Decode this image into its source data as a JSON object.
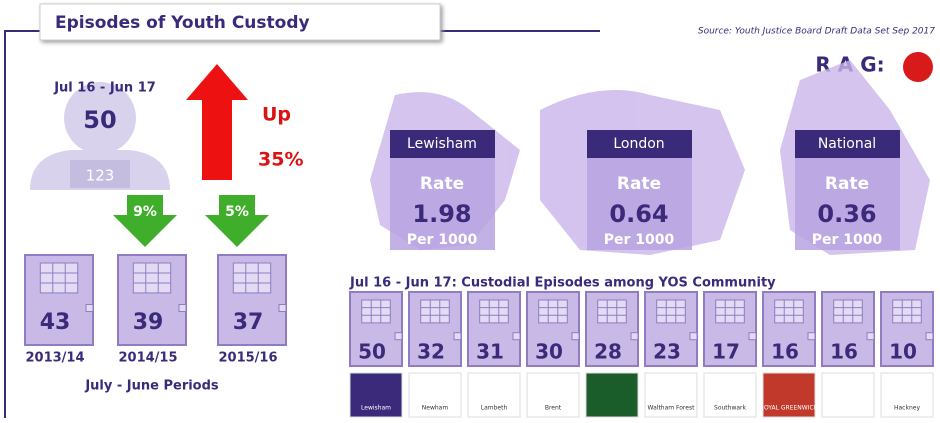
{
  "header": {
    "title": "Episodes of Youth Custody",
    "source": "Source: Youth Justice Board Draft Data Set Sep 2017",
    "rag": "R A G:"
  },
  "current": {
    "period": "Jul 16 - Jun 17",
    "value": "50",
    "badge": "123",
    "direction": "Up",
    "change": "35%"
  },
  "changes": [
    "9%",
    "5%"
  ],
  "history": {
    "values": [
      "43",
      "39",
      "37"
    ],
    "periods": [
      "2013/14",
      "2014/15",
      "2015/16"
    ],
    "caption": "July - June Periods"
  },
  "rates": [
    {
      "area": "Lewisham",
      "label": "Rate",
      "value": "1.98",
      "unit": "Per 1000"
    },
    {
      "area": "London",
      "label": "Rate",
      "value": "0.64",
      "unit": "Per 1000"
    },
    {
      "area": "National",
      "label": "Rate",
      "value": "0.36",
      "unit": "Per 1000"
    }
  ],
  "community": {
    "heading": "Jul 16 - Jun 17: Custodial Episodes among YOS Community",
    "values": [
      "50",
      "32",
      "31",
      "30",
      "28",
      "23",
      "17",
      "16",
      "16",
      "10"
    ],
    "logos": [
      "Lewisham",
      "Newham",
      "Lambeth",
      "Brent",
      null,
      "Waltham Forest",
      "Southwark",
      "ROYAL GREENWICH",
      null,
      "Hackney"
    ]
  }
}
